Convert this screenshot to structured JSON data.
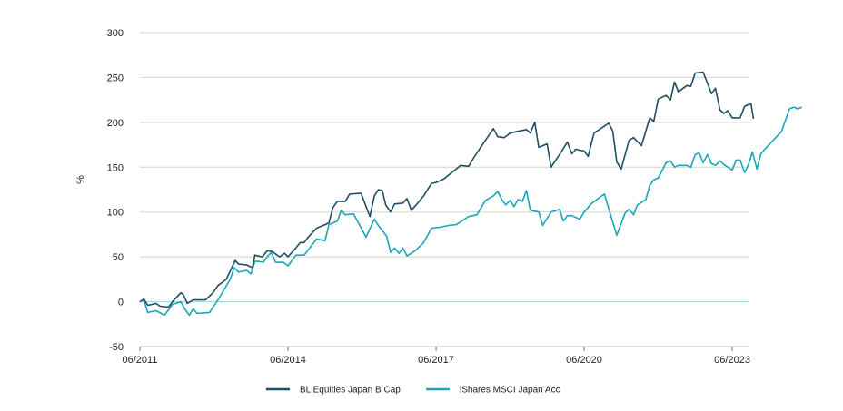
{
  "chart_data": {
    "type": "line",
    "title": "",
    "ylabel": "%",
    "ylim": [
      -50,
      300
    ],
    "yticks": [
      -50,
      0,
      50,
      100,
      150,
      200,
      250,
      300
    ],
    "xlim": [
      2011.42,
      2023.75
    ],
    "xticks": [
      {
        "value": 2011.42,
        "label": "06/2011"
      },
      {
        "value": 2014.42,
        "label": "06/2014"
      },
      {
        "value": 2017.42,
        "label": "06/2017"
      },
      {
        "value": 2020.42,
        "label": "06/2020"
      },
      {
        "value": 2023.42,
        "label": "06/2023"
      }
    ],
    "grid": "horizontal",
    "legend_position": "bottom",
    "series": [
      {
        "name": "BL Equities Japan B Cap",
        "color": "#1f4e63",
        "points": [
          [
            2011.42,
            0
          ],
          [
            2011.5,
            3
          ],
          [
            2011.58,
            -4
          ],
          [
            2011.75,
            -2
          ],
          [
            2011.83,
            -5
          ],
          [
            2012.0,
            -6
          ],
          [
            2012.08,
            0
          ],
          [
            2012.25,
            10
          ],
          [
            2012.3,
            8
          ],
          [
            2012.38,
            -2
          ],
          [
            2012.5,
            2
          ],
          [
            2012.75,
            2
          ],
          [
            2012.9,
            10
          ],
          [
            2013.0,
            18
          ],
          [
            2013.05,
            20
          ],
          [
            2013.17,
            25
          ],
          [
            2013.35,
            46
          ],
          [
            2013.42,
            42
          ],
          [
            2013.58,
            41
          ],
          [
            2013.7,
            38
          ],
          [
            2013.75,
            52
          ],
          [
            2013.9,
            50
          ],
          [
            2014.0,
            57
          ],
          [
            2014.1,
            56
          ],
          [
            2014.25,
            50
          ],
          [
            2014.35,
            54
          ],
          [
            2014.42,
            50
          ],
          [
            2014.58,
            60
          ],
          [
            2014.67,
            66
          ],
          [
            2014.75,
            66
          ],
          [
            2014.83,
            72
          ],
          [
            2015.0,
            82
          ],
          [
            2015.17,
            86
          ],
          [
            2015.25,
            88
          ],
          [
            2015.33,
            105
          ],
          [
            2015.42,
            112
          ],
          [
            2015.58,
            112
          ],
          [
            2015.67,
            120
          ],
          [
            2015.9,
            121
          ],
          [
            2016.08,
            95
          ],
          [
            2016.17,
            118
          ],
          [
            2016.25,
            125
          ],
          [
            2016.33,
            124
          ],
          [
            2016.4,
            108
          ],
          [
            2016.5,
            100
          ],
          [
            2016.58,
            109
          ],
          [
            2016.75,
            110
          ],
          [
            2016.83,
            115
          ],
          [
            2016.92,
            102
          ],
          [
            2017.05,
            110
          ],
          [
            2017.17,
            118
          ],
          [
            2017.33,
            132
          ],
          [
            2017.42,
            133
          ],
          [
            2017.58,
            137
          ],
          [
            2017.92,
            152
          ],
          [
            2018.08,
            151
          ],
          [
            2018.2,
            162
          ],
          [
            2018.58,
            193
          ],
          [
            2018.67,
            184
          ],
          [
            2018.8,
            183
          ],
          [
            2018.92,
            188
          ],
          [
            2019.08,
            190
          ],
          [
            2019.25,
            192
          ],
          [
            2019.33,
            188
          ],
          [
            2019.42,
            200
          ],
          [
            2019.5,
            172
          ],
          [
            2019.58,
            174
          ],
          [
            2019.67,
            176
          ],
          [
            2019.75,
            150
          ],
          [
            2019.92,
            164
          ],
          [
            2020.08,
            178
          ],
          [
            2020.17,
            165
          ],
          [
            2020.25,
            170
          ],
          [
            2020.42,
            168
          ],
          [
            2020.5,
            162
          ],
          [
            2020.62,
            188
          ],
          [
            2020.92,
            199
          ],
          [
            2021.0,
            190
          ],
          [
            2021.08,
            156
          ],
          [
            2021.17,
            148
          ],
          [
            2021.33,
            180
          ],
          [
            2021.42,
            183
          ],
          [
            2021.58,
            174
          ],
          [
            2021.75,
            205
          ],
          [
            2021.83,
            201
          ],
          [
            2021.92,
            226
          ],
          [
            2022.08,
            230
          ],
          [
            2022.17,
            225
          ],
          [
            2022.25,
            245
          ],
          [
            2022.33,
            234
          ],
          [
            2022.5,
            241
          ],
          [
            2022.58,
            240
          ],
          [
            2022.67,
            255
          ],
          [
            2022.83,
            256
          ],
          [
            2023.0,
            232
          ],
          [
            2023.08,
            238
          ],
          [
            2023.17,
            214
          ],
          [
            2023.25,
            210
          ],
          [
            2023.33,
            213
          ],
          [
            2023.42,
            205
          ],
          [
            2023.5,
            205
          ],
          [
            2023.58,
            205
          ],
          [
            2023.67,
            218
          ],
          [
            2023.8,
            221
          ],
          [
            2023.85,
            204
          ]
        ]
      },
      {
        "name": "iShares MSCI Japan Acc",
        "color": "#1aa6b7",
        "points": [
          [
            2011.42,
            0
          ],
          [
            2011.5,
            2
          ],
          [
            2011.58,
            -12
          ],
          [
            2011.75,
            -10
          ],
          [
            2011.92,
            -15
          ],
          [
            2012.08,
            -3
          ],
          [
            2012.25,
            0
          ],
          [
            2012.33,
            -8
          ],
          [
            2012.42,
            -15
          ],
          [
            2012.5,
            -8
          ],
          [
            2012.58,
            -13
          ],
          [
            2012.83,
            -12
          ],
          [
            2013.0,
            2
          ],
          [
            2013.25,
            25
          ],
          [
            2013.33,
            38
          ],
          [
            2013.42,
            33
          ],
          [
            2013.58,
            35
          ],
          [
            2013.67,
            31
          ],
          [
            2013.75,
            45
          ],
          [
            2013.83,
            45
          ],
          [
            2013.92,
            44
          ],
          [
            2014.0,
            50
          ],
          [
            2014.08,
            55
          ],
          [
            2014.17,
            44
          ],
          [
            2014.33,
            44
          ],
          [
            2014.42,
            40
          ],
          [
            2014.58,
            52
          ],
          [
            2014.75,
            52
          ],
          [
            2015.0,
            70
          ],
          [
            2015.17,
            68
          ],
          [
            2015.25,
            86
          ],
          [
            2015.42,
            90
          ],
          [
            2015.5,
            102
          ],
          [
            2015.58,
            97
          ],
          [
            2015.75,
            98
          ],
          [
            2016.0,
            72
          ],
          [
            2016.17,
            92
          ],
          [
            2016.25,
            85
          ],
          [
            2016.42,
            73
          ],
          [
            2016.5,
            55
          ],
          [
            2016.58,
            60
          ],
          [
            2016.67,
            54
          ],
          [
            2016.75,
            60
          ],
          [
            2016.83,
            51
          ],
          [
            2017.0,
            57
          ],
          [
            2017.17,
            66
          ],
          [
            2017.33,
            82
          ],
          [
            2017.5,
            83
          ],
          [
            2017.67,
            85
          ],
          [
            2017.83,
            86
          ],
          [
            2018.08,
            95
          ],
          [
            2018.25,
            97
          ],
          [
            2018.42,
            113
          ],
          [
            2018.58,
            118
          ],
          [
            2018.67,
            123
          ],
          [
            2018.75,
            114
          ],
          [
            2018.83,
            108
          ],
          [
            2018.92,
            113
          ],
          [
            2019.0,
            106
          ],
          [
            2019.08,
            114
          ],
          [
            2019.17,
            112
          ],
          [
            2019.25,
            124
          ],
          [
            2019.33,
            102
          ],
          [
            2019.5,
            100
          ],
          [
            2019.58,
            85
          ],
          [
            2019.75,
            100
          ],
          [
            2019.92,
            103
          ],
          [
            2020.0,
            90
          ],
          [
            2020.08,
            96
          ],
          [
            2020.17,
            96
          ],
          [
            2020.33,
            92
          ],
          [
            2020.42,
            100
          ],
          [
            2020.58,
            110
          ],
          [
            2020.83,
            120
          ],
          [
            2021.08,
            74
          ],
          [
            2021.25,
            99
          ],
          [
            2021.33,
            103
          ],
          [
            2021.42,
            97
          ],
          [
            2021.5,
            108
          ],
          [
            2021.67,
            114
          ],
          [
            2021.75,
            130
          ],
          [
            2021.83,
            136
          ],
          [
            2021.92,
            138
          ],
          [
            2022.08,
            155
          ],
          [
            2022.17,
            157
          ],
          [
            2022.25,
            150
          ],
          [
            2022.33,
            152
          ],
          [
            2022.5,
            152
          ],
          [
            2022.58,
            150
          ],
          [
            2022.67,
            164
          ],
          [
            2022.75,
            166
          ],
          [
            2022.83,
            155
          ],
          [
            2022.92,
            164
          ],
          [
            2023.0,
            154
          ],
          [
            2023.08,
            152
          ],
          [
            2023.17,
            157
          ],
          [
            2023.25,
            153
          ],
          [
            2023.33,
            150
          ],
          [
            2023.42,
            147
          ],
          [
            2023.5,
            158
          ],
          [
            2023.58,
            158
          ],
          [
            2023.67,
            144
          ],
          [
            2023.75,
            153
          ],
          [
            2023.83,
            167
          ],
          [
            2023.92,
            148
          ],
          [
            2024.0,
            165
          ],
          [
            2024.08,
            170
          ],
          [
            2024.42,
            190
          ],
          [
            2024.58,
            215
          ],
          [
            2024.67,
            217
          ],
          [
            2024.75,
            215
          ],
          [
            2024.83,
            217
          ]
        ]
      }
    ]
  }
}
